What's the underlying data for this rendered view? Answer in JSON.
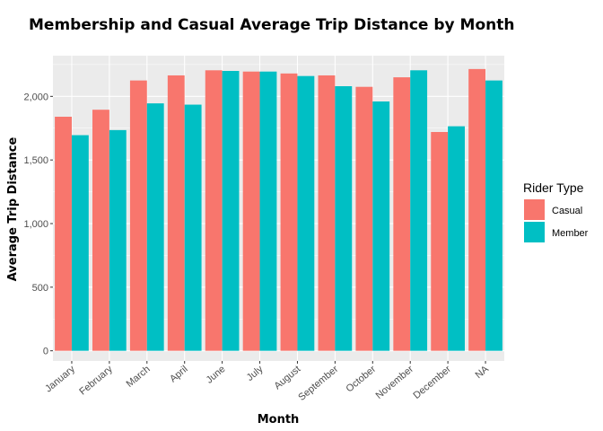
{
  "chart_data": {
    "type": "bar",
    "title": "Membership and Casual Average Trip Distance by Month",
    "xlabel": "Month",
    "ylabel": "Average Trip Distance",
    "categories": [
      "January",
      "February",
      "March",
      "April",
      "June",
      "July",
      "August",
      "September",
      "October",
      "November",
      "December",
      "NA"
    ],
    "series": [
      {
        "name": "Casual",
        "color": "#F8766D",
        "values": [
          1840,
          1895,
          2125,
          2165,
          2205,
          2195,
          2180,
          2165,
          2075,
          2150,
          1720,
          2215
        ]
      },
      {
        "name": "Member",
        "color": "#00BFC4",
        "values": [
          1695,
          1735,
          1945,
          1935,
          2200,
          2195,
          2160,
          2080,
          1960,
          2205,
          1765,
          2125
        ]
      }
    ],
    "ylim": [
      -80,
      2320
    ],
    "yticks": [
      0,
      500,
      1000,
      1500,
      2000
    ],
    "ytick_labels": [
      "0",
      "500",
      "1,000",
      "1,500",
      "2,000"
    ],
    "grid": true,
    "panel_color": "#EBEBEB",
    "legend": {
      "title": "Rider Type",
      "position": "right"
    }
  }
}
